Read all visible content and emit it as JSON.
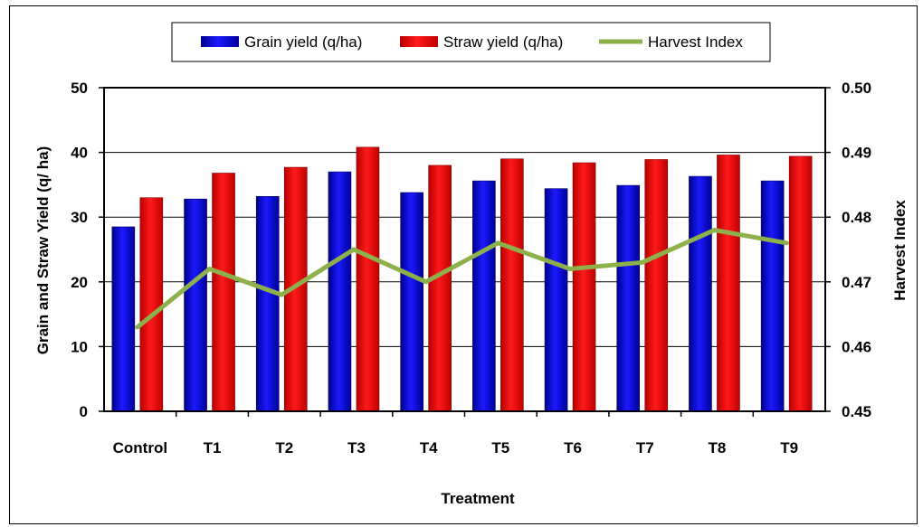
{
  "chart_data": {
    "type": "bar",
    "categories": [
      "Control",
      "T1",
      "T2",
      "T3",
      "T4",
      "T5",
      "T6",
      "T7",
      "T8",
      "T9"
    ],
    "series": [
      {
        "name": "Grain yield (q/ha)",
        "kind": "bar",
        "axis": "left",
        "color": "#0000ff",
        "values": [
          28.5,
          32.8,
          33.2,
          37.0,
          33.8,
          35.6,
          34.4,
          34.9,
          36.3,
          35.6
        ]
      },
      {
        "name": "Straw yield (q/ha)",
        "kind": "bar",
        "axis": "left",
        "color": "#ff0000",
        "values": [
          33.0,
          36.8,
          37.7,
          40.8,
          38.0,
          39.0,
          38.4,
          38.9,
          39.6,
          39.4
        ]
      },
      {
        "name": "Harvest Index",
        "kind": "line",
        "axis": "right",
        "color": "#8db04b",
        "values": [
          0.463,
          0.472,
          0.468,
          0.475,
          0.47,
          0.476,
          0.472,
          0.473,
          0.478,
          0.476
        ]
      }
    ],
    "xlabel": "Treatment",
    "ylabel": "Grain and Straw Yield (q/ ha)",
    "y2label": "Harvest Index",
    "ylim": [
      0,
      50
    ],
    "yticks": [
      "0",
      "10",
      "20",
      "30",
      "40",
      "50"
    ],
    "y2lim": [
      0.45,
      0.5
    ],
    "y2ticks": [
      "0.45",
      "0.46",
      "0.47",
      "0.48",
      "0.49",
      "0.50"
    ],
    "grid": true,
    "legend": "top-center"
  }
}
